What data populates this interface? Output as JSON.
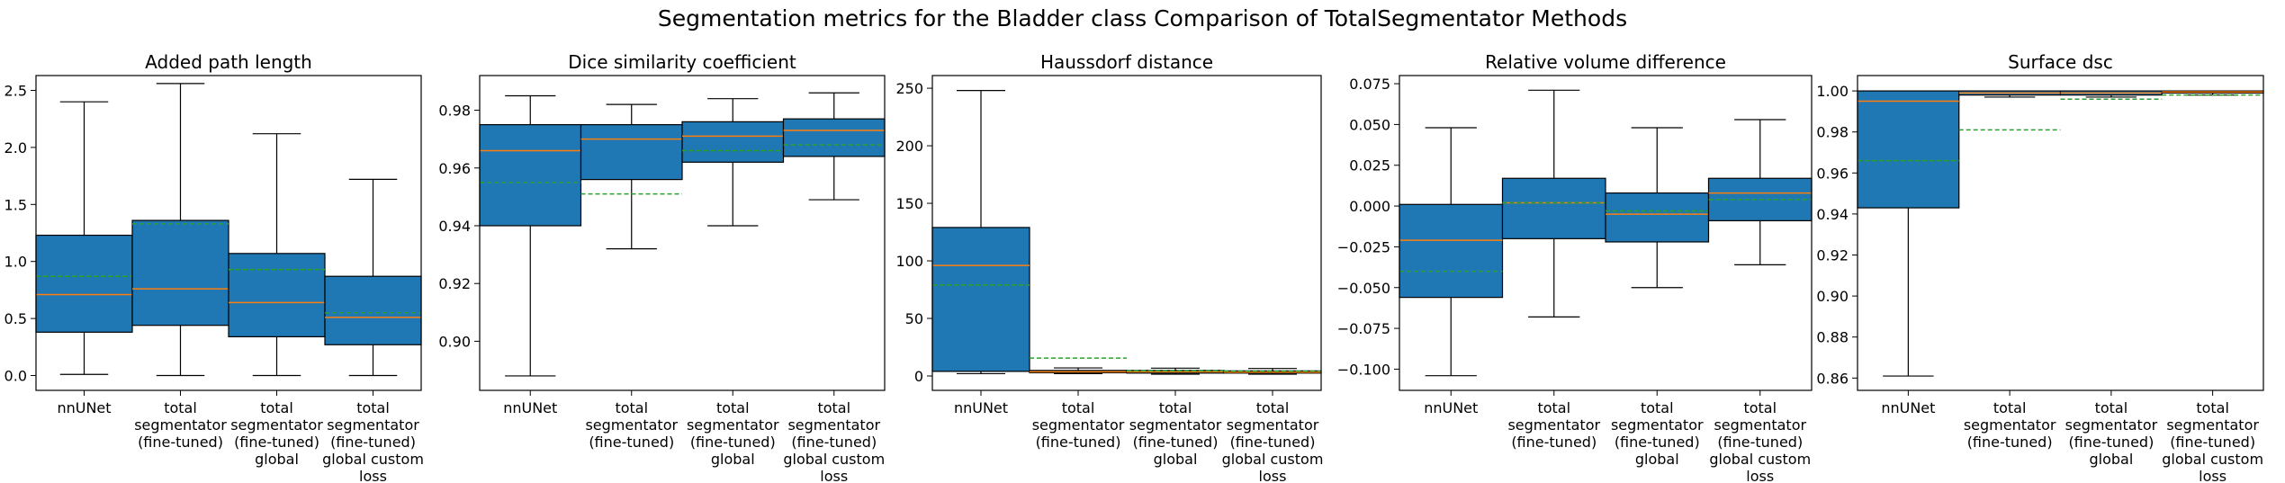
{
  "suptitle": "Segmentation metrics for the Bladder class Comparison of TotalSegmentator Methods",
  "colors": {
    "box": "#1f77b4",
    "median": "#ff7f0e",
    "mean": "#2ca02c",
    "outline": "#000000"
  },
  "categories": [
    [
      "nnUNet"
    ],
    [
      "total",
      "segmentator",
      "(fine-tuned)"
    ],
    [
      "total",
      "segmentator",
      "(fine-tuned)",
      "global"
    ],
    [
      "total",
      "segmentator",
      "(fine-tuned)",
      "global custom",
      "loss"
    ]
  ],
  "chart_data": [
    {
      "type": "box",
      "title": "Added path length",
      "ylim": [
        -0.13,
        2.63
      ],
      "yticks": [
        0.0,
        0.5,
        1.0,
        1.5,
        2.0,
        2.5
      ],
      "ytick_labels": [
        "0.0",
        "0.5",
        "1.0",
        "1.5",
        "2.0",
        "2.5"
      ],
      "boxes": [
        {
          "whislo": 0.01,
          "q1": 0.38,
          "med": 0.71,
          "q3": 1.23,
          "whishi": 2.4,
          "mean": 0.87
        },
        {
          "whislo": 0.0,
          "q1": 0.44,
          "med": 0.76,
          "q3": 1.36,
          "whishi": 2.56,
          "mean": 1.33
        },
        {
          "whislo": 0.0,
          "q1": 0.34,
          "med": 0.64,
          "q3": 1.07,
          "whishi": 2.12,
          "mean": 0.93
        },
        {
          "whislo": 0.0,
          "q1": 0.27,
          "med": 0.51,
          "q3": 0.87,
          "whishi": 1.72,
          "mean": 0.55
        }
      ]
    },
    {
      "type": "box",
      "title": "Dice similarity coefficient",
      "ylim": [
        0.883,
        0.992
      ],
      "yticks": [
        0.9,
        0.92,
        0.94,
        0.96,
        0.98
      ],
      "ytick_labels": [
        "0.90",
        "0.92",
        "0.94",
        "0.96",
        "0.98"
      ],
      "boxes": [
        {
          "whislo": 0.888,
          "q1": 0.94,
          "med": 0.966,
          "q3": 0.975,
          "whishi": 0.985,
          "mean": 0.955
        },
        {
          "whislo": 0.932,
          "q1": 0.956,
          "med": 0.97,
          "q3": 0.975,
          "whishi": 0.982,
          "mean": 0.951
        },
        {
          "whislo": 0.94,
          "q1": 0.962,
          "med": 0.971,
          "q3": 0.976,
          "whishi": 0.984,
          "mean": 0.966
        },
        {
          "whislo": 0.949,
          "q1": 0.964,
          "med": 0.973,
          "q3": 0.977,
          "whishi": 0.986,
          "mean": 0.968
        }
      ]
    },
    {
      "type": "box",
      "title": "Haussdorf distance",
      "ylim": [
        -12.5,
        261
      ],
      "yticks": [
        0,
        50,
        100,
        150,
        200,
        250
      ],
      "ytick_labels": [
        "0",
        "50",
        "100",
        "150",
        "200",
        "250"
      ],
      "boxes": [
        {
          "whislo": 2.0,
          "q1": 4.0,
          "med": 96.0,
          "q3": 129.0,
          "whishi": 248.0,
          "mean": 79.0
        },
        {
          "whislo": 2.0,
          "q1": 2.8,
          "med": 3.6,
          "q3": 4.8,
          "whishi": 7.0,
          "mean": 15.5
        },
        {
          "whislo": 1.5,
          "q1": 2.5,
          "med": 3.6,
          "q3": 4.8,
          "whishi": 6.8,
          "mean": 4.5
        },
        {
          "whislo": 1.5,
          "q1": 2.5,
          "med": 3.3,
          "q3": 4.4,
          "whishi": 6.5,
          "mean": 4.2
        }
      ]
    },
    {
      "type": "box",
      "title": "Relative volume difference",
      "ylim": [
        -0.113,
        0.08
      ],
      "yticks": [
        -0.1,
        -0.075,
        -0.05,
        -0.025,
        0.0,
        0.025,
        0.05,
        0.075
      ],
      "ytick_labels": [
        "−0.100",
        "−0.075",
        "−0.050",
        "−0.025",
        "0.000",
        "0.025",
        "0.050",
        "0.075"
      ],
      "boxes": [
        {
          "whislo": -0.104,
          "q1": -0.056,
          "med": -0.021,
          "q3": 0.001,
          "whishi": 0.048,
          "mean": -0.04
        },
        {
          "whislo": -0.068,
          "q1": -0.02,
          "med": 0.002,
          "q3": 0.017,
          "whishi": 0.071,
          "mean": 0.002
        },
        {
          "whislo": -0.05,
          "q1": -0.022,
          "med": -0.005,
          "q3": 0.008,
          "whishi": 0.048,
          "mean": -0.003
        },
        {
          "whislo": -0.036,
          "q1": -0.009,
          "med": 0.008,
          "q3": 0.017,
          "whishi": 0.053,
          "mean": 0.004
        }
      ]
    },
    {
      "type": "box",
      "title": "Surface dsc",
      "ylim": [
        0.854,
        1.0075
      ],
      "yticks": [
        0.86,
        0.88,
        0.9,
        0.92,
        0.94,
        0.96,
        0.98,
        1.0
      ],
      "ytick_labels": [
        "0.86",
        "0.88",
        "0.90",
        "0.92",
        "0.94",
        "0.96",
        "0.98",
        "1.00"
      ],
      "boxes": [
        {
          "whislo": 0.861,
          "q1": 0.943,
          "med": 0.995,
          "q3": 1.0,
          "whishi": 1.0,
          "mean": 0.966
        },
        {
          "whislo": 0.997,
          "q1": 0.998,
          "med": 0.999,
          "q3": 1.0,
          "whishi": 1.0,
          "mean": 0.981
        },
        {
          "whislo": 0.997,
          "q1": 0.998,
          "med": 0.999,
          "q3": 1.0,
          "whishi": 1.0,
          "mean": 0.996
        },
        {
          "whislo": 0.998,
          "q1": 0.999,
          "med": 0.9995,
          "q3": 1.0,
          "whishi": 1.0,
          "mean": 0.998
        }
      ]
    }
  ]
}
